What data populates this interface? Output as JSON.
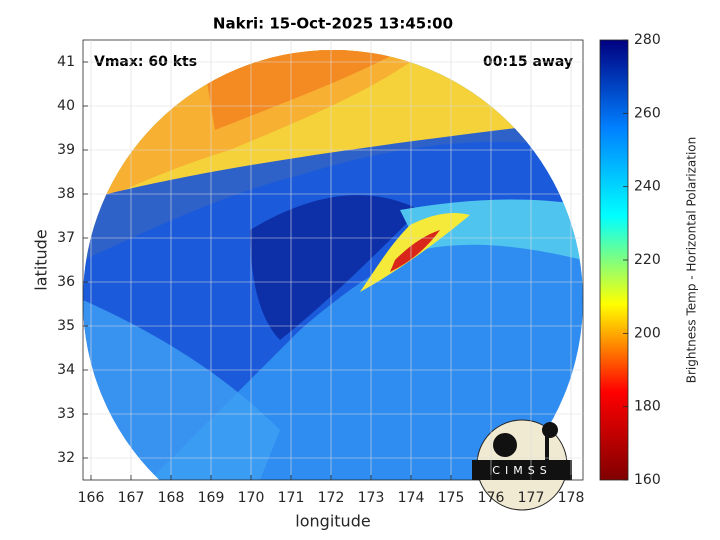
{
  "chart_data": {
    "type": "image",
    "title": "Nakri: 15-Oct-2025 13:45:00",
    "xlabel": "longitude",
    "ylabel": "latitude",
    "xlim": [
      165.8,
      178.3
    ],
    "ylim": [
      31.5,
      41.5
    ],
    "xticks": [
      166,
      167,
      168,
      169,
      170,
      171,
      172,
      173,
      174,
      175,
      176,
      177,
      178
    ],
    "yticks": [
      32,
      33,
      34,
      35,
      36,
      37,
      38,
      39,
      40,
      41
    ],
    "grid": true,
    "annotations": [
      "Vmax: 60 kts",
      "00:15 away"
    ],
    "logo": "CIMSS",
    "colorbar": {
      "label": "Brightness Temp - Horizontal Polarization",
      "lim": [
        160,
        280
      ],
      "ticks": [
        160,
        180,
        200,
        220,
        240,
        260,
        280
      ],
      "colormap": [
        "#800000",
        "#ff0000",
        "#ffff00",
        "#00ffff",
        "#0080ff",
        "#000080"
      ]
    }
  }
}
